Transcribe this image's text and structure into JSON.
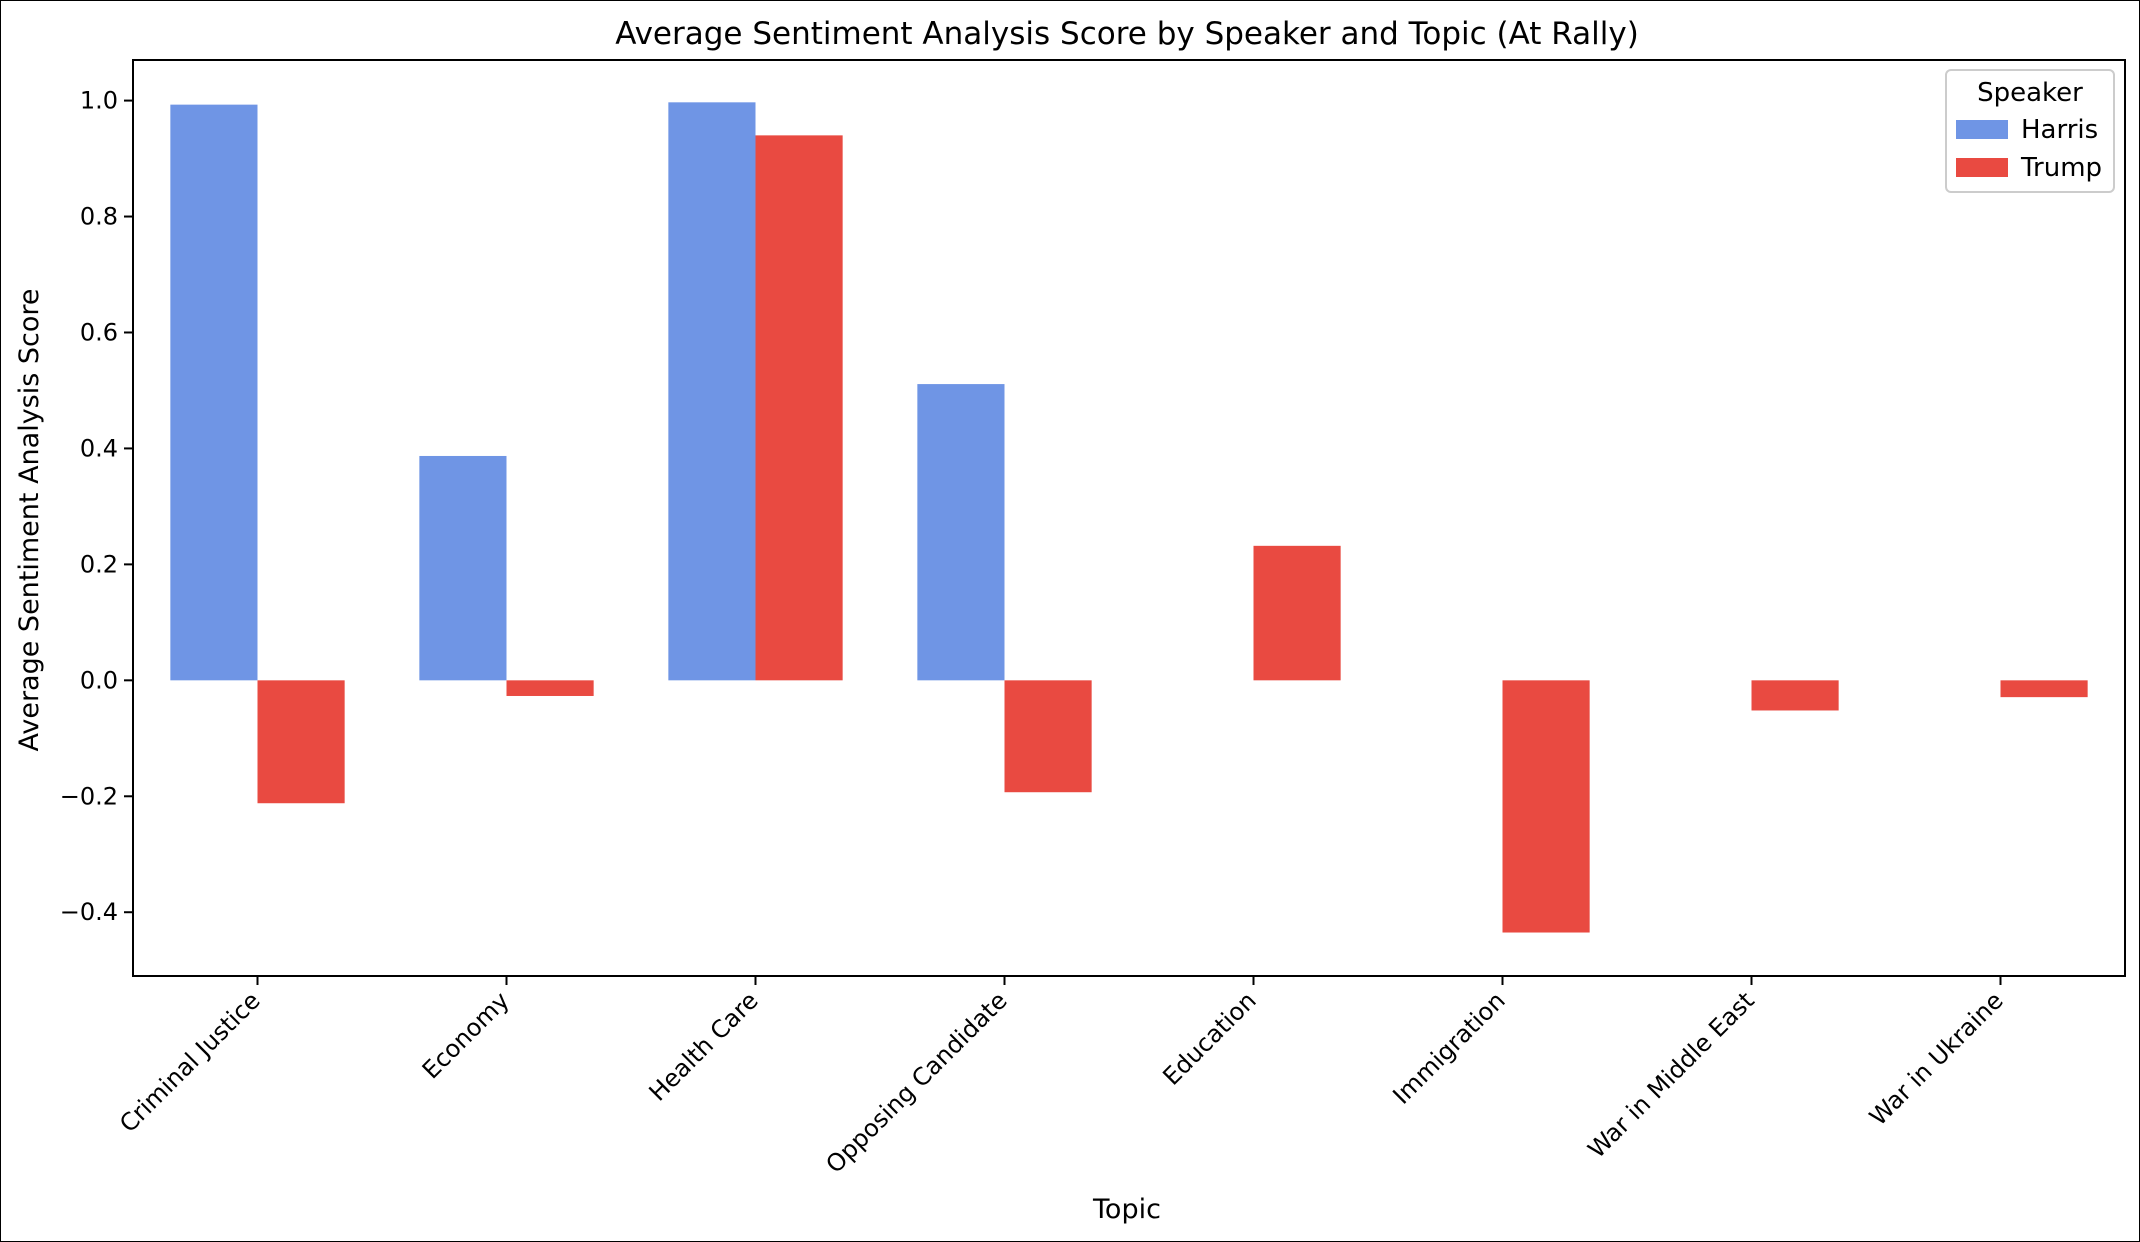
{
  "chart_data": {
    "type": "bar",
    "title": "Average Sentiment Analysis Score by Speaker and Topic (At Rally)",
    "xlabel": "Topic",
    "ylabel": "Average Sentiment Analysis Score",
    "categories": [
      "Criminal Justice",
      "Economy",
      "Health Care",
      "Opposing Candidate",
      "Education",
      "Immigration",
      "War in Middle East",
      "War in Ukraine"
    ],
    "series": [
      {
        "name": "Harris",
        "color": "#6f95e5",
        "values": [
          0.993,
          0.387,
          0.997,
          0.511,
          null,
          null,
          null,
          null
        ]
      },
      {
        "name": "Trump",
        "color": "#e94a41",
        "values": [
          -0.212,
          -0.027,
          0.94,
          -0.193,
          0.232,
          -0.435,
          -0.052,
          -0.029
        ]
      }
    ],
    "ylim": [
      -0.51,
      1.07
    ],
    "yticks": [
      "1.0",
      "0.8",
      "0.6",
      "0.4",
      "0.2",
      "0.0",
      "−0.2",
      "−0.4"
    ],
    "ytick_values": [
      1.0,
      0.8,
      0.6,
      0.4,
      0.2,
      0.0,
      -0.2,
      -0.4
    ],
    "legend": {
      "title": "Speaker",
      "placement": "top-right"
    },
    "grid": false
  }
}
